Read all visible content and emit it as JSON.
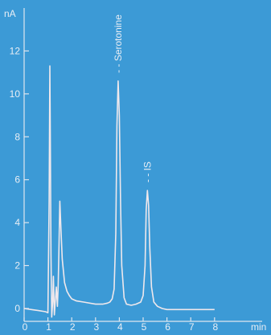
{
  "colors": {
    "background": "#3c9ad6",
    "axis": "#dfe6ef",
    "trace": "#efe8ec",
    "text": "#e9eef5"
  },
  "chart_data": {
    "type": "line",
    "title": "",
    "xlabel": "min",
    "ylabel": "nA",
    "xlim": [
      0,
      10
    ],
    "ylim": [
      -0.6,
      14
    ],
    "x_ticks": [
      0,
      1,
      2,
      3,
      4,
      5,
      6,
      7,
      8
    ],
    "x_tick_labels": [
      "0",
      "1",
      "2",
      "3",
      "4",
      "5",
      "6",
      "7",
      "8"
    ],
    "y_ticks": [
      0,
      2,
      4,
      6,
      8,
      10,
      12
    ],
    "y_tick_labels": [
      "0",
      "2",
      "4",
      "6",
      "8",
      "10",
      "12"
    ],
    "grid": false,
    "legend": "none",
    "series": [
      {
        "x": [
          0.0,
          0.3,
          0.6,
          0.9,
          1.0,
          1.05,
          1.08,
          1.1,
          1.13,
          1.16,
          1.2,
          1.23,
          1.27,
          1.3,
          1.35,
          1.4,
          1.43,
          1.46,
          1.5,
          1.55,
          1.6,
          1.7,
          1.8,
          1.9,
          2.0,
          2.2,
          2.5,
          3.0,
          3.3,
          3.5,
          3.6,
          3.7,
          3.78,
          3.85,
          3.9,
          3.95,
          4.0,
          4.05,
          4.1,
          4.2,
          4.3,
          4.5,
          4.7,
          4.9,
          5.0,
          5.08,
          5.13,
          5.18,
          5.23,
          5.28,
          5.35,
          5.45,
          5.6,
          5.8,
          6.0,
          6.5,
          7.0,
          7.5,
          8.0
        ],
        "y": [
          0.0,
          -0.05,
          -0.1,
          -0.15,
          -0.2,
          5.0,
          11.3,
          7.8,
          2.5,
          -0.4,
          0.3,
          1.5,
          -0.3,
          0.2,
          1.0,
          0.1,
          1.0,
          2.6,
          5.0,
          3.6,
          2.3,
          1.2,
          0.8,
          0.6,
          0.45,
          0.35,
          0.3,
          0.2,
          0.2,
          0.25,
          0.3,
          0.45,
          0.9,
          3.5,
          8.5,
          10.6,
          9.0,
          5.0,
          2.0,
          0.5,
          0.2,
          0.15,
          0.2,
          0.3,
          0.6,
          2.0,
          4.6,
          5.5,
          4.8,
          2.8,
          1.0,
          0.3,
          0.1,
          0.0,
          -0.05,
          -0.05,
          -0.05,
          -0.05,
          -0.05
        ]
      }
    ],
    "annotations": [
      {
        "text": "Serotonine",
        "x": 3.95,
        "y": 10.6
      },
      {
        "text": "IS",
        "x": 5.18,
        "y": 5.5
      }
    ]
  }
}
